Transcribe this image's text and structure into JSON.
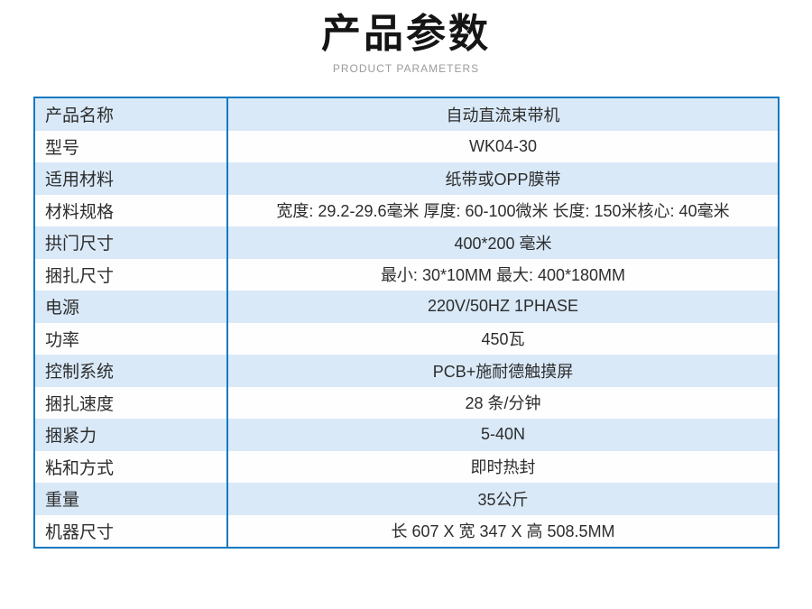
{
  "header": {
    "title": "产品参数",
    "subtitle": "PRODUCT PARAMETERS"
  },
  "table": {
    "rows": [
      {
        "label": "产品名称",
        "value": "自动直流束带机"
      },
      {
        "label": "型号",
        "value": "WK04-30"
      },
      {
        "label": "适用材料",
        "value": "纸带或OPP膜带"
      },
      {
        "label": "材料规格",
        "value": "宽度: 29.2-29.6毫米 厚度: 60-100微米 长度: 150米核心: 40毫米"
      },
      {
        "label": "拱门尺寸",
        "value": "400*200 毫米"
      },
      {
        "label": "捆扎尺寸",
        "value": "最小: 30*10MM 最大: 400*180MM"
      },
      {
        "label": "电源",
        "value": "220V/50HZ 1PHASE"
      },
      {
        "label": "功率",
        "value": "450瓦"
      },
      {
        "label": "控制系统",
        "value": "PCB+施耐德触摸屏"
      },
      {
        "label": "捆扎速度",
        "value": "28 条/分钟"
      },
      {
        "label": "捆紧力",
        "value": "5-40N"
      },
      {
        "label": "粘和方式",
        "value": "即时热封"
      },
      {
        "label": "重量",
        "value": "35公斤"
      },
      {
        "label": "机器尺寸",
        "value": "长 607 X 宽 347 X 高 508.5MM"
      }
    ]
  },
  "colors": {
    "accent_border_blue": "#1579c0",
    "row_highlight_blue": "#d9e9f8",
    "row_white": "#fefefe",
    "body_text": "#2d2d2d",
    "title_text": "#151515",
    "subtitle_text": "#9b9b9b"
  }
}
